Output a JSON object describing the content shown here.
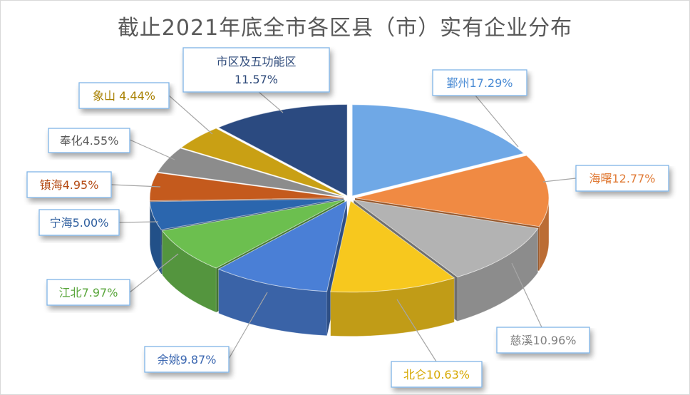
{
  "chart_data": {
    "type": "pie",
    "style": "3d-exploded",
    "title": "截止2021年底全市各区县（市）实有企业分布",
    "legend": "none",
    "slices": [
      {
        "name": "鄞州",
        "value": 17.29,
        "label": "鄞州17.29%",
        "color": "#6FA8E6",
        "label_color": "#4A8BD4"
      },
      {
        "name": "海曙",
        "value": 12.77,
        "label": "海曙12.77%",
        "color": "#F08A43",
        "label_color": "#E07A35"
      },
      {
        "name": "慈溪",
        "value": 10.96,
        "label": "慈溪10.96%",
        "color": "#B3B3B3",
        "label_color": "#7F7F7F"
      },
      {
        "name": "北仑",
        "value": 10.63,
        "label": "北仑10.63%",
        "color": "#F7C81E",
        "label_color": "#D6A800"
      },
      {
        "name": "余姚",
        "value": 9.87,
        "label": "余姚9.87%",
        "color": "#4A7FD6",
        "label_color": "#3A66B0"
      },
      {
        "name": "江北",
        "value": 7.97,
        "label": "江北7.97%",
        "color": "#6CBF4F",
        "label_color": "#5AA63C"
      },
      {
        "name": "宁海",
        "value": 5.0,
        "label": "宁海5.00%",
        "color": "#2B66AE",
        "label_color": "#2E5E9E"
      },
      {
        "name": "镇海",
        "value": 4.95,
        "label": "镇海4.95%",
        "color": "#C45A1D",
        "label_color": "#B44A14"
      },
      {
        "name": "奉化",
        "value": 4.55,
        "label": "奉化4.55%",
        "color": "#8C8C8C",
        "label_color": "#595959"
      },
      {
        "name": "象山",
        "value": 4.44,
        "label": "象山 4.44%",
        "color": "#C9A014",
        "label_color": "#A88000"
      },
      {
        "name": "市区及五功能区",
        "value": 11.57,
        "label_line1": "市区及五功能区",
        "label_line2": "11.57%",
        "color": "#2B4A80",
        "label_color": "#2E4A7A"
      }
    ]
  }
}
